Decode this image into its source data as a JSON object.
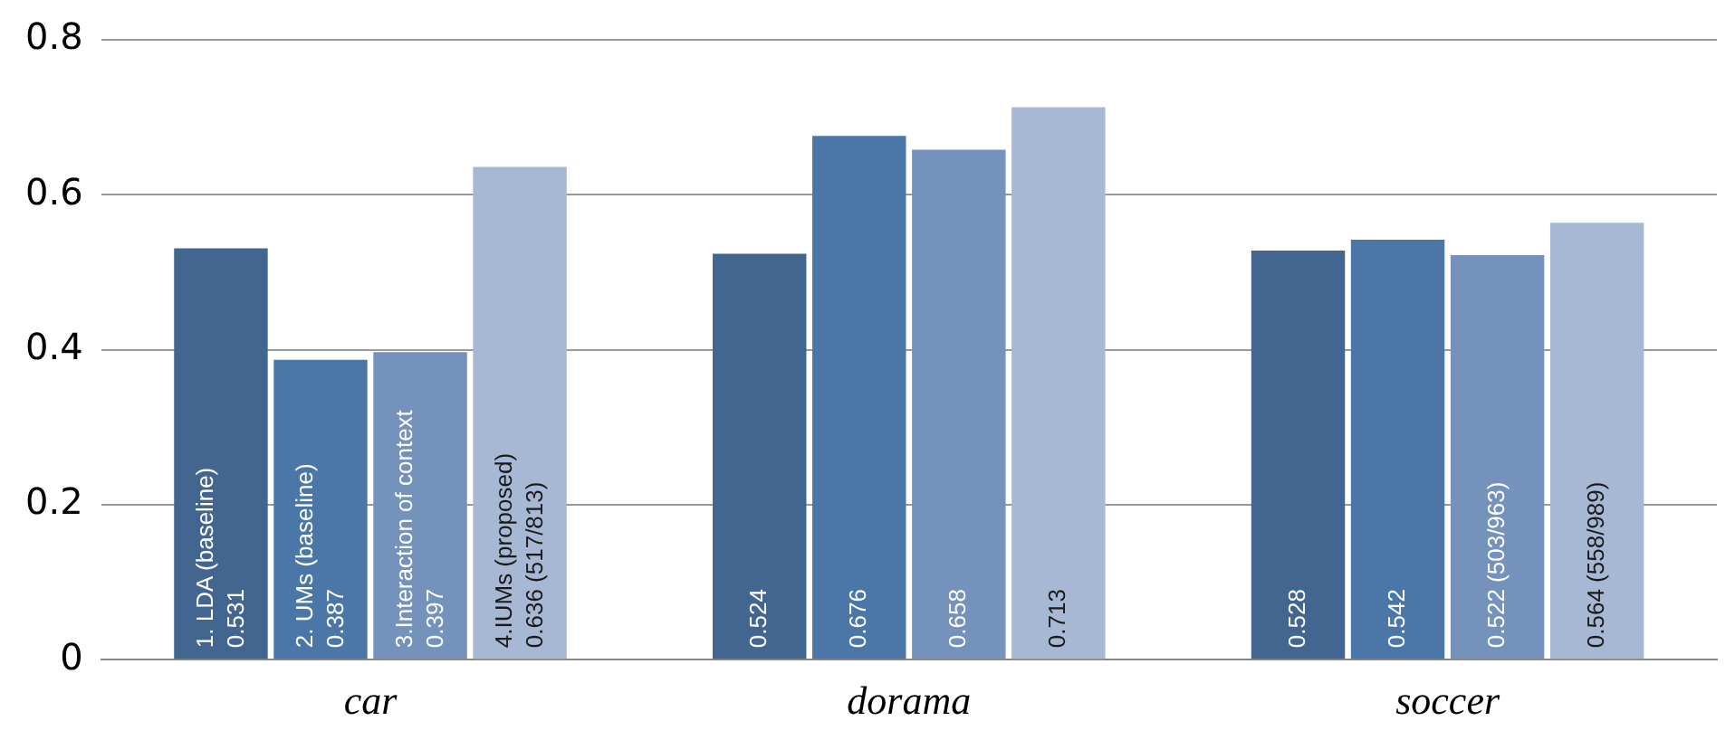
{
  "chart_data": {
    "type": "bar",
    "categories": [
      "car",
      "dorama",
      "soccer"
    ],
    "series": [
      {
        "name": "1. LDA (baseline)",
        "color": "#42668f",
        "values": [
          0.531,
          0.524,
          0.528
        ],
        "value_labels": [
          "0.531",
          "0.524",
          "0.528"
        ]
      },
      {
        "name": "2. UMs (baseline)",
        "color": "#4a76a8",
        "values": [
          0.387,
          0.676,
          0.542
        ],
        "value_labels": [
          "0.387",
          "0.676",
          "0.542"
        ]
      },
      {
        "name": "3.Interaction of context",
        "color": "#7492bb",
        "values": [
          0.397,
          0.658,
          0.522
        ],
        "value_labels": [
          "0.397",
          "0.658",
          "0.522 (503/963)"
        ]
      },
      {
        "name": "4.IUMs (proposed)",
        "color": "#a6b8d4",
        "values": [
          0.636,
          0.713,
          0.564
        ],
        "value_labels": [
          "0.636 (517/813)",
          "0.713",
          "0.564 (558/989)"
        ]
      }
    ],
    "ylim": [
      0,
      0.8
    ],
    "yticks": [
      0,
      0.2,
      0.4,
      0.6,
      0.8
    ],
    "grid": "y",
    "legend": false
  }
}
